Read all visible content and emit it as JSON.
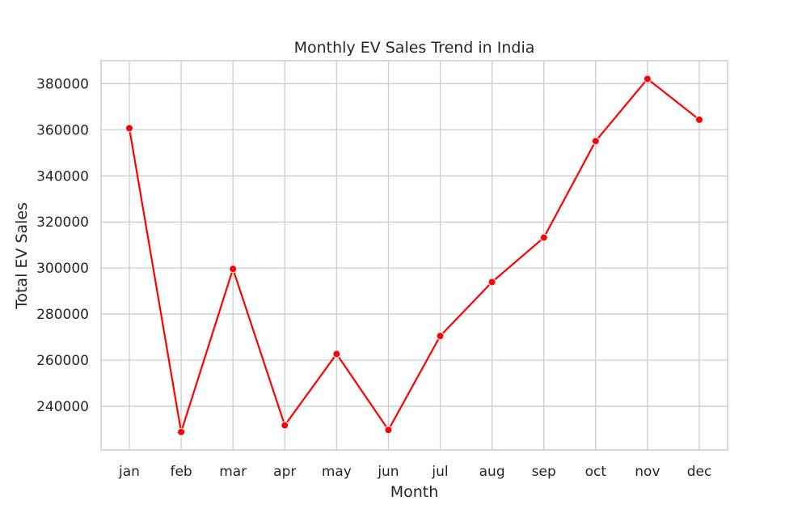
{
  "chart_data": {
    "type": "line",
    "title": "Monthly EV Sales Trend in India",
    "xlabel": "Month",
    "ylabel": "Total EV Sales",
    "categories": [
      "jan",
      "feb",
      "mar",
      "apr",
      "may",
      "jun",
      "jul",
      "aug",
      "sep",
      "oct",
      "nov",
      "dec"
    ],
    "series": [
      {
        "name": "Total EV Sales",
        "values": [
          360700,
          228800,
          299600,
          231700,
          262700,
          229700,
          270500,
          293900,
          313200,
          355100,
          382100,
          364400
        ]
      }
    ],
    "yticks": [
      240000,
      260000,
      280000,
      300000,
      320000,
      340000,
      360000,
      380000
    ],
    "ylim": [
      221000,
      390000
    ],
    "grid": true,
    "color": "#ff0000",
    "marker": "circle"
  }
}
